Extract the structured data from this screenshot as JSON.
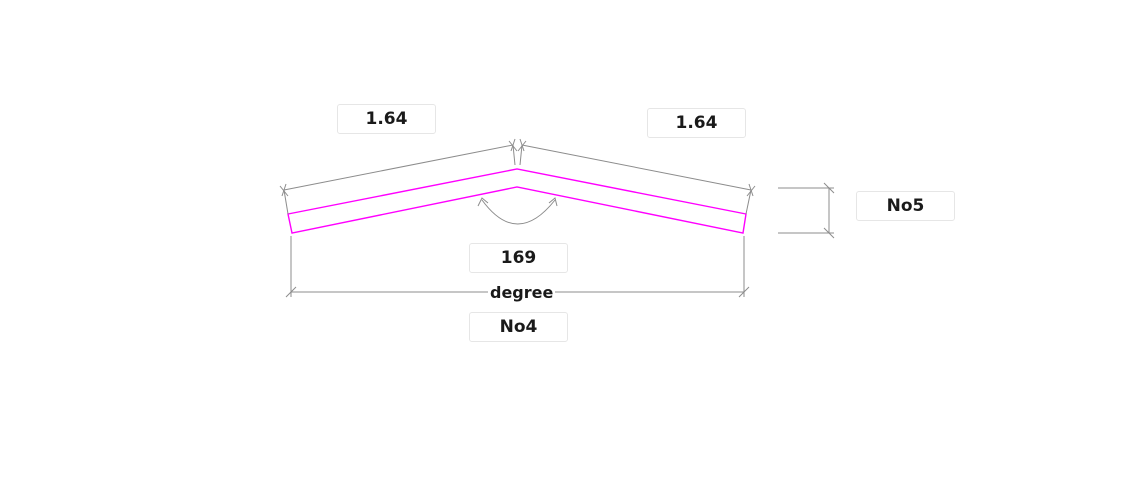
{
  "drawing": {
    "left_segment_length": "1.64",
    "right_segment_length": "1.64",
    "angle_value": "169",
    "angle_unit": "degree",
    "width_label": "No4",
    "thickness_label": "No5",
    "colors": {
      "profile": "#ff00ff",
      "dimension": "#8c8c8c",
      "label_border": "#e6e6e6",
      "text": "#1a1a1a"
    }
  }
}
